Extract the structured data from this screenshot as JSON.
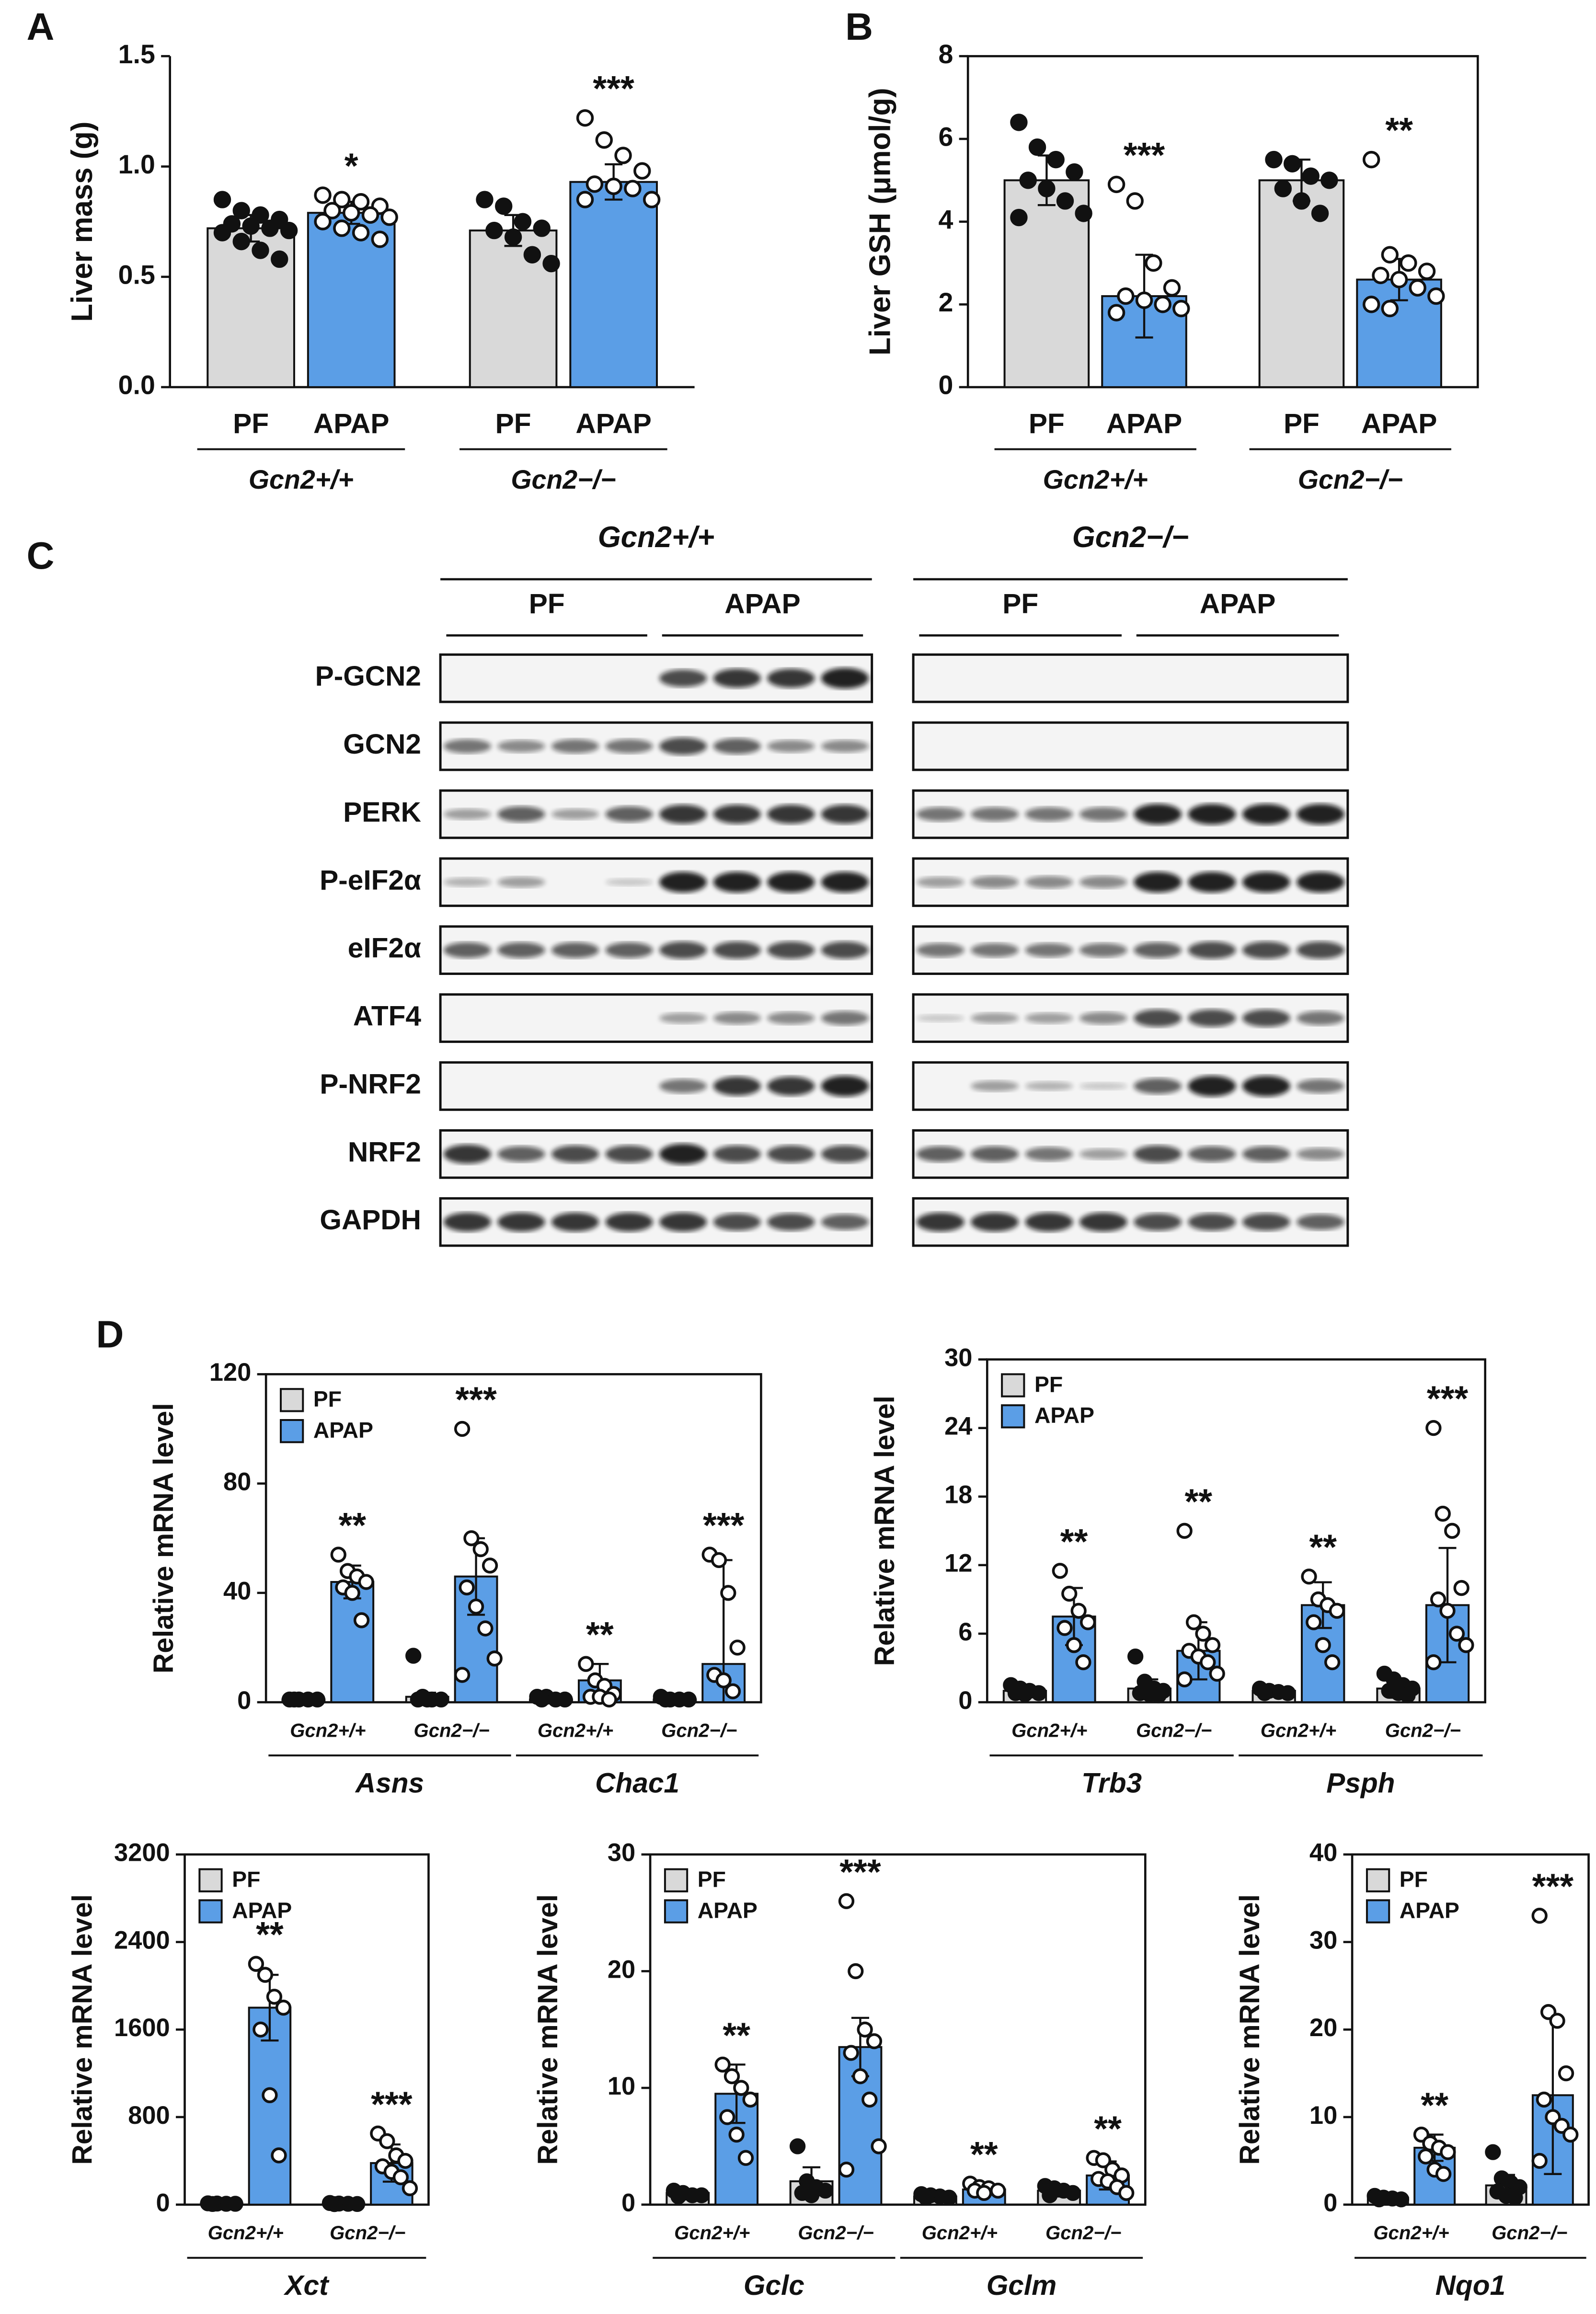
{
  "chart_data": [
    {
      "type": "bar",
      "panel": "A",
      "ylabel": "Liver mass (g)",
      "frame": false,
      "ylim": [
        0,
        1.5
      ],
      "yticks": [
        {
          "value": 0,
          "label": "0.0"
        },
        0.5,
        {
          "value": 1,
          "label": "1.0"
        },
        1.5
      ],
      "categories": [
        "Gcn2+/+",
        "Gcn2−/−"
      ],
      "series": [
        {
          "name": "PF",
          "color": "#d9d9d9",
          "values": [
            0.72,
            0.71
          ],
          "errors": [
            0.06,
            0.07
          ],
          "points": [
            [
              0.85,
              0.8,
              0.78,
              0.76,
              0.74,
              0.73,
              0.72,
              0.71,
              0.7,
              0.66,
              0.62,
              0.58
            ],
            [
              0.85,
              0.82,
              0.75,
              0.72,
              0.71,
              0.68,
              0.6,
              0.56
            ]
          ]
        },
        {
          "name": "APAP",
          "color": "#5b9ee6",
          "values": [
            0.79,
            0.93
          ],
          "errors": [
            0.05,
            0.08
          ],
          "significance": [
            "*",
            "***"
          ],
          "points": [
            [
              0.87,
              0.85,
              0.84,
              0.82,
              0.8,
              0.79,
              0.78,
              0.77,
              0.75,
              0.72,
              0.7,
              0.67
            ],
            [
              1.22,
              1.12,
              1.05,
              0.98,
              0.92,
              0.91,
              0.9,
              0.85,
              0.85
            ]
          ]
        }
      ]
    },
    {
      "type": "bar",
      "panel": "B",
      "ylabel": "Liver GSH (μmol/g)",
      "frame": true,
      "ylim": [
        0,
        8
      ],
      "yticks": [
        0,
        2,
        4,
        6,
        8
      ],
      "categories": [
        "Gcn2+/+",
        "Gcn2−/−"
      ],
      "series": [
        {
          "name": "PF",
          "color": "#d9d9d9",
          "values": [
            5.0,
            5.0
          ],
          "errors": [
            0.6,
            0.5
          ],
          "points": [
            [
              6.4,
              5.8,
              5.5,
              5.2,
              5.0,
              4.8,
              4.5,
              4.2,
              4.1
            ],
            [
              5.5,
              5.4,
              5.1,
              5.0,
              4.8,
              4.5,
              4.2
            ]
          ]
        },
        {
          "name": "APAP",
          "color": "#5b9ee6",
          "values": [
            2.2,
            2.6
          ],
          "errors": [
            1.0,
            0.5
          ],
          "significance": [
            "***",
            "**"
          ],
          "points": [
            [
              4.9,
              4.5,
              3.0,
              2.4,
              2.2,
              2.1,
              2.0,
              1.9,
              1.8
            ],
            [
              5.5,
              3.2,
              3.0,
              2.8,
              2.7,
              2.6,
              2.4,
              2.2,
              2.0,
              1.9
            ]
          ]
        }
      ]
    },
    {
      "type": "bar",
      "panel": "D",
      "ylabel": "Relative mRNA level",
      "frame": true,
      "legend": "upper left",
      "ylim": [
        0,
        120
      ],
      "yticks": [
        0,
        40,
        80,
        120
      ],
      "categories": [
        "Gcn2+/+",
        "Gcn2−/−",
        "Gcn2+/+",
        "Gcn2−/−"
      ],
      "genes": [
        "Asns",
        "Chac1"
      ],
      "series": [
        {
          "name": "PF",
          "color": "#d9d9d9",
          "values": [
            1,
            2,
            1,
            1
          ],
          "errors": [
            0.5,
            1.5,
            1,
            1
          ],
          "points": [
            [
              1,
              1,
              1,
              1,
              1
            ],
            [
              17,
              2,
              1,
              1,
              1,
              1
            ],
            [
              2,
              2,
              1,
              1,
              1
            ],
            [
              2,
              1,
              1,
              1,
              1
            ]
          ]
        },
        {
          "name": "APAP",
          "color": "#5b9ee6",
          "values": [
            44,
            46,
            8,
            14
          ],
          "errors": [
            6,
            14,
            6,
            38
          ],
          "significance": [
            "**",
            "***",
            "**",
            "***"
          ],
          "points": [
            [
              54,
              48,
              46,
              44,
              42,
              40,
              30
            ],
            [
              100,
              60,
              56,
              50,
              42,
              35,
              27,
              16,
              10
            ],
            [
              14,
              8,
              6,
              3,
              2,
              2,
              1
            ],
            [
              54,
              52,
              40,
              20,
              10,
              8,
              4
            ]
          ]
        }
      ]
    },
    {
      "type": "bar",
      "ylabel": "Relative mRNA level",
      "frame": true,
      "legend": "upper left",
      "ylim": [
        0,
        30
      ],
      "yticks": [
        0,
        6,
        12,
        18,
        24,
        30
      ],
      "categories": [
        "Gcn2+/+",
        "Gcn2−/−",
        "Gcn2+/+",
        "Gcn2−/−"
      ],
      "genes": [
        "Trb3",
        "Psph"
      ],
      "series": [
        {
          "name": "PF",
          "color": "#d9d9d9",
          "values": [
            1,
            1.2,
            1,
            1.2
          ],
          "errors": [
            0.3,
            0.8,
            0.2,
            0.8
          ],
          "points": [
            [
              1.5,
              1.2,
              1,
              0.8,
              0.8,
              0.7
            ],
            [
              4,
              1.8,
              1.2,
              1,
              0.8,
              0.7,
              0.6
            ],
            [
              1.2,
              1,
              0.9,
              0.8,
              0.8
            ],
            [
              2.5,
              2,
              1.5,
              1.2,
              1,
              0.8,
              0.6
            ]
          ]
        },
        {
          "name": "APAP",
          "color": "#5b9ee6",
          "values": [
            7.5,
            4.5,
            8.5,
            8.5
          ],
          "errors": [
            2.5,
            2.5,
            2,
            5
          ],
          "significance": [
            "**",
            "**",
            "**",
            "***"
          ],
          "points": [
            [
              11.5,
              9.5,
              8,
              7,
              6.5,
              5,
              3.5
            ],
            [
              15,
              7,
              6,
              5,
              4.5,
              4,
              3.5,
              2.5,
              2
            ],
            [
              11,
              9,
              8.5,
              8,
              7,
              5,
              3.5
            ],
            [
              24,
              16.5,
              15,
              10,
              9,
              8,
              6,
              5,
              3.5
            ]
          ]
        }
      ]
    },
    {
      "type": "bar",
      "ylabel": "Relative mRNA level",
      "frame": true,
      "legend": "upper left",
      "ylim": [
        0,
        3200
      ],
      "yticks": [
        0,
        800,
        1600,
        2400,
        3200
      ],
      "categories": [
        "Gcn2+/+",
        "Gcn2−/−"
      ],
      "genes": [
        "Xct"
      ],
      "series": [
        {
          "name": "PF",
          "color": "#d9d9d9",
          "values": [
            10,
            10
          ],
          "errors": [
            5,
            5
          ],
          "points": [
            [
              12,
              10,
              8,
              8,
              6
            ],
            [
              15,
              10,
              8,
              6,
              5
            ]
          ]
        },
        {
          "name": "APAP",
          "color": "#5b9ee6",
          "values": [
            1800,
            380
          ],
          "errors": [
            300,
            170
          ],
          "significance": [
            "**",
            "***"
          ],
          "points": [
            [
              2200,
              2100,
              1900,
              1800,
              1600,
              1000,
              450
            ],
            [
              650,
              580,
              450,
              400,
              350,
              300,
              250,
              150
            ]
          ]
        }
      ]
    },
    {
      "type": "bar",
      "ylabel": "Relative mRNA level",
      "frame": true,
      "legend": "upper left",
      "ylim": [
        0,
        30
      ],
      "yticks": [
        0,
        10,
        20,
        30
      ],
      "categories": [
        "Gcn2+/+",
        "Gcn2−/−",
        "Gcn2+/+",
        "Gcn2−/−"
      ],
      "genes": [
        "Gclc",
        "Gclm"
      ],
      "series": [
        {
          "name": "PF",
          "color": "#d9d9d9",
          "values": [
            1,
            2,
            0.7,
            1.2
          ],
          "errors": [
            0.3,
            1.2,
            0.2,
            0.5
          ],
          "points": [
            [
              1.2,
              1,
              0.8,
              0.8,
              0.7
            ],
            [
              5,
              2,
              1.5,
              1.2,
              1,
              0.8
            ],
            [
              0.9,
              0.8,
              0.7,
              0.6,
              0.6
            ],
            [
              1.6,
              1.4,
              1.2,
              1,
              0.8
            ]
          ]
        },
        {
          "name": "APAP",
          "color": "#5b9ee6",
          "values": [
            9.5,
            13.5,
            1.3,
            2.5
          ],
          "errors": [
            2.5,
            2.5,
            0.3,
            1.2
          ],
          "significance": [
            "**",
            "***",
            "**",
            "**"
          ],
          "points": [
            [
              12,
              11,
              10,
              9,
              7.5,
              6,
              4
            ],
            [
              26,
              20,
              15,
              14,
              13,
              11,
              9,
              5,
              3
            ],
            [
              1.8,
              1.5,
              1.4,
              1.2,
              1.2,
              1
            ],
            [
              4,
              3.8,
              3,
              2.5,
              2.2,
              2,
              1.5,
              1
            ]
          ]
        }
      ]
    },
    {
      "type": "bar",
      "ylabel": "Relative mRNA level",
      "frame": true,
      "legend": "upper left",
      "ylim": [
        0,
        40
      ],
      "yticks": [
        0,
        10,
        20,
        30,
        40
      ],
      "categories": [
        "Gcn2+/+",
        "Gcn2−/−"
      ],
      "genes": [
        "Nqo1"
      ],
      "series": [
        {
          "name": "PF",
          "color": "#d9d9d9",
          "values": [
            0.8,
            2.2
          ],
          "errors": [
            0.2,
            1.2
          ],
          "points": [
            [
              1,
              0.8,
              0.7,
              0.6,
              0.6
            ],
            [
              6,
              3,
              2.5,
              2,
              1.5,
              1,
              0.8
            ]
          ]
        },
        {
          "name": "APAP",
          "color": "#5b9ee6",
          "values": [
            6.5,
            12.5
          ],
          "errors": [
            1.5,
            9
          ],
          "significance": [
            "**",
            "***"
          ],
          "points": [
            [
              8,
              7,
              6.5,
              6,
              5.5,
              4,
              3.5
            ],
            [
              33,
              22,
              21,
              15,
              12,
              10,
              9,
              8,
              5
            ]
          ]
        }
      ]
    }
  ],
  "blot": {
    "panel": "C",
    "genotypes": [
      "Gcn2+/+",
      "Gcn2−/−"
    ],
    "conditions": [
      "PF",
      "APAP"
    ],
    "rows": [
      "P-GCN2",
      "GCN2",
      "PERK",
      "P-eIF2α",
      "eIF2α",
      "ATF4",
      "P-NRF2",
      "NRF2",
      "GAPDH"
    ]
  }
}
